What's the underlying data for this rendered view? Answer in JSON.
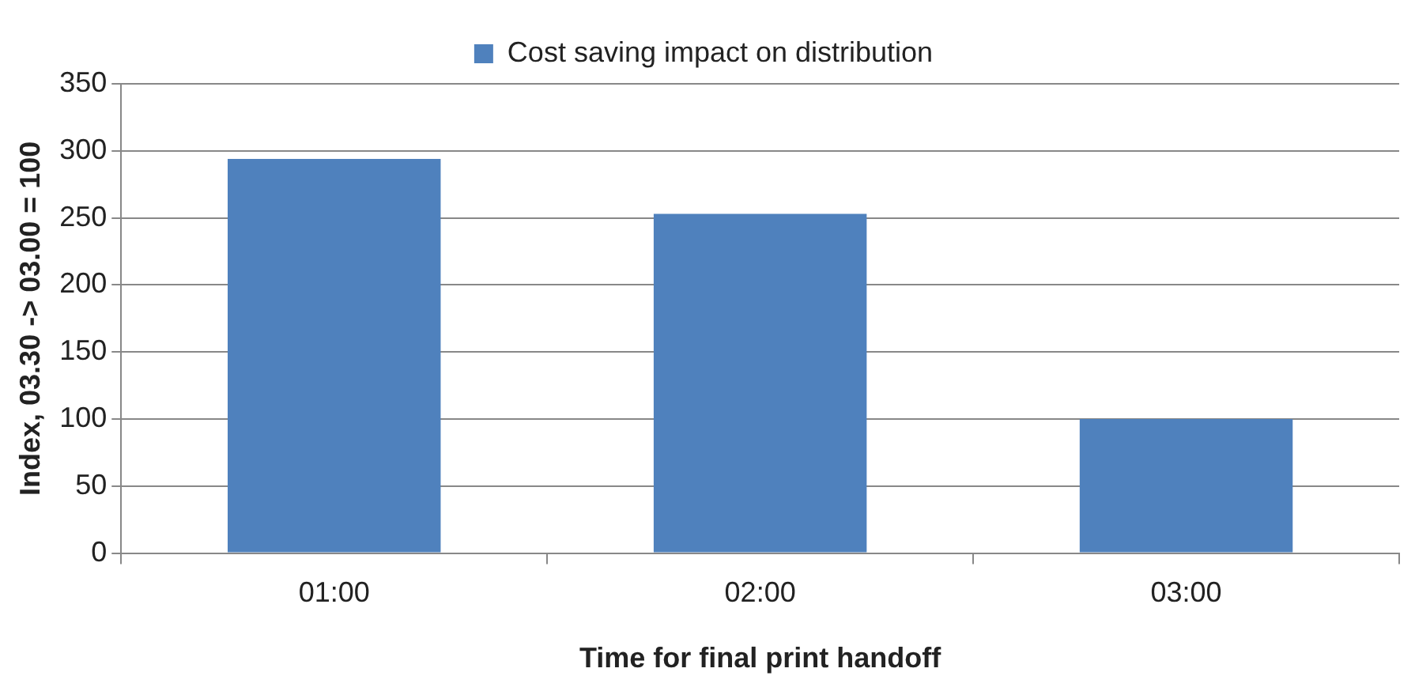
{
  "chart_data": {
    "type": "bar",
    "categories": [
      "01:00",
      "02:00",
      "03:00"
    ],
    "series": [
      {
        "name": "Cost saving impact on distribution",
        "color": "#4f81bd",
        "values": [
          294,
          253,
          100
        ]
      }
    ],
    "xlabel": "Time for final print handoff",
    "ylabel": "Index, 03.30 -> 03.00 = 100",
    "ylim": [
      0,
      350
    ],
    "yticks": [
      0,
      50,
      100,
      150,
      200,
      250,
      300,
      350
    ],
    "grid": "y",
    "legend": "top"
  }
}
